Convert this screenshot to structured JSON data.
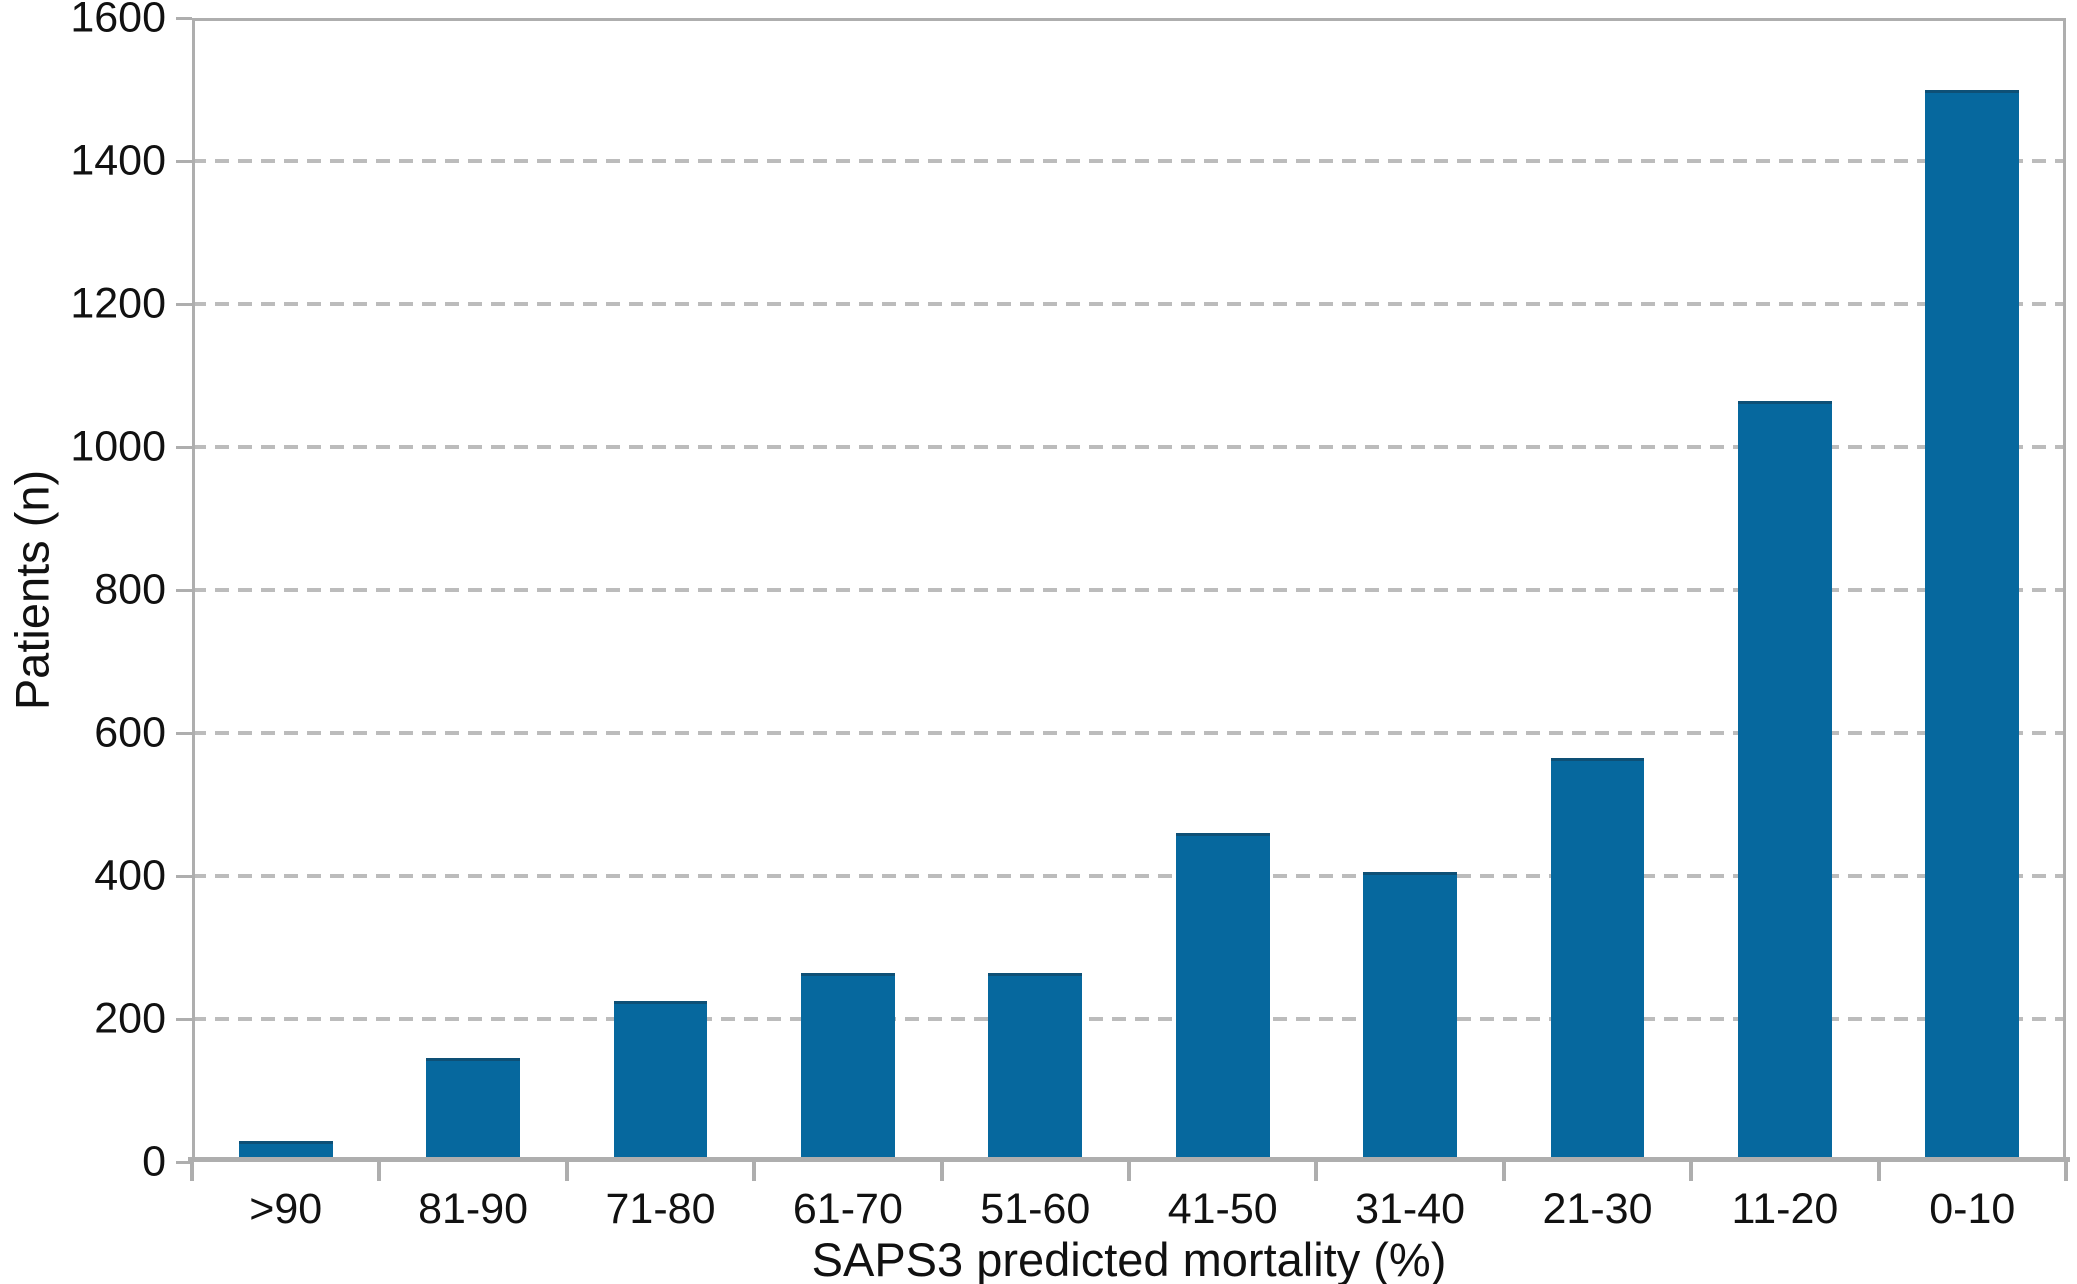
{
  "chart_data": {
    "type": "bar",
    "title": "",
    "categories": [
      ">90",
      "81-90",
      "71-80",
      "61-70",
      "51-60",
      "41-50",
      "31-40",
      "21-30",
      "11-20",
      "0-10"
    ],
    "values": [
      30,
      145,
      225,
      265,
      265,
      460,
      405,
      565,
      1065,
      1500
    ],
    "xlabel": "SAPS3 predicted mortality (%)",
    "ylabel": "Patients (n)",
    "ylim": [
      0,
      1600
    ],
    "yticks": [
      0,
      200,
      400,
      600,
      800,
      1000,
      1200,
      1400,
      1600
    ],
    "grid": "horizontal-dashed",
    "legend_position": "none",
    "colors": {
      "bar": "#06689e",
      "bar_top_edge": "#0e5076",
      "axis": "#aeaeae",
      "gridline": "#bcbcbc",
      "text": "#111111"
    }
  }
}
